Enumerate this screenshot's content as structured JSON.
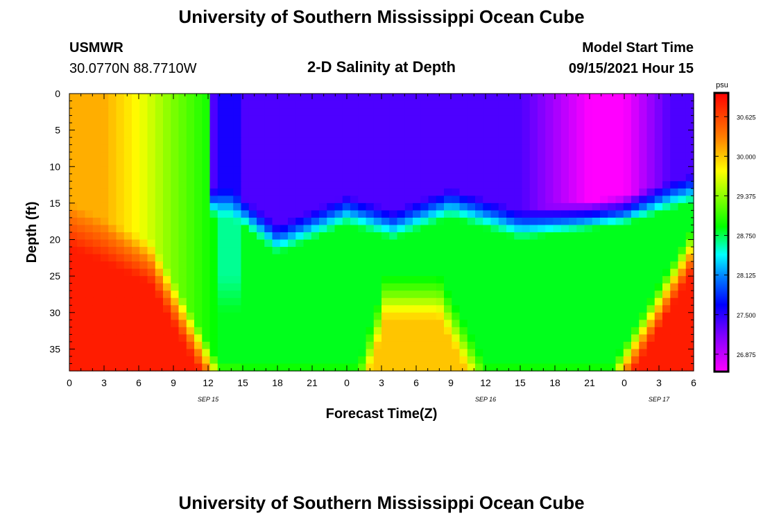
{
  "page": {
    "title_top": "University of Southern Mississippi Ocean Cube",
    "title_bottom": "University of Southern Mississippi Ocean Cube",
    "station_name": "USMWR",
    "station_coords": "30.0770N  88.7710W",
    "chart_title": "2-D Salinity at Depth",
    "model_start_label": "Model Start Time",
    "model_start_value": "09/15/2021 Hour 15"
  },
  "chart_data": {
    "type": "heatmap",
    "title": "2-D Salinity at Depth",
    "xlabel": "Forecast Time(Z)",
    "ylabel": "Depth (ft)",
    "units": "psu",
    "ylim": [
      0,
      38
    ],
    "y_reversed": true,
    "x_ticks": [
      "0",
      "3",
      "6",
      "9",
      "12",
      "15",
      "18",
      "21",
      "0",
      "3",
      "6",
      "9",
      "12",
      "15",
      "18",
      "21",
      "0",
      "3",
      "6"
    ],
    "y_ticks": [
      0,
      5,
      10,
      15,
      20,
      25,
      30,
      35
    ],
    "date_labels": [
      {
        "text": "SEP 15",
        "tick_index": 4
      },
      {
        "text": "SEP 16",
        "tick_index": 12
      },
      {
        "text": "SEP 17",
        "tick_index": 17
      }
    ],
    "colorbar_labels": [
      "30.625",
      "30.000",
      "29.375",
      "28.750",
      "28.125",
      "27.500",
      "26.875"
    ],
    "colorbar_range": [
      26.6,
      31.0
    ],
    "colors": {
      "low": "#ff00ff",
      "mid": "#00ff00",
      "high": "#ff0000"
    },
    "grid": false
  }
}
